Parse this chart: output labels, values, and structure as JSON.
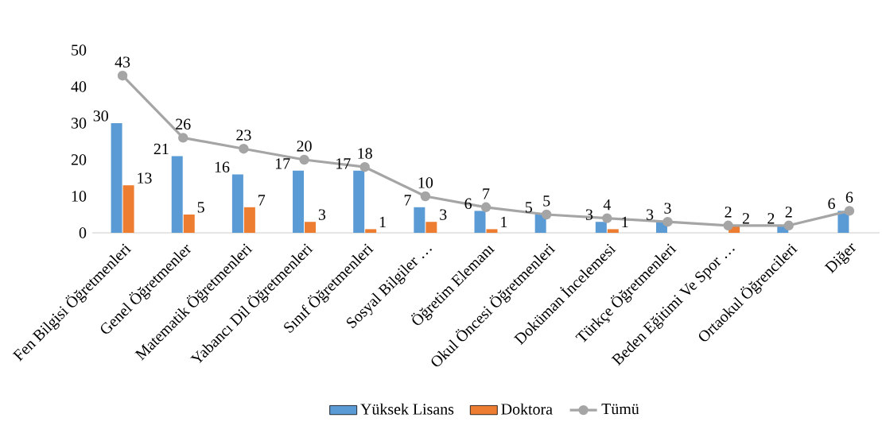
{
  "chart_data": {
    "type": "bar",
    "categories": [
      "Fen Bilgisi Öğretmenleri",
      "Genel Öğretmenler",
      "Matematik Öğretmenleri",
      "Yabancı Dil Öğretmenleri",
      "Sınıf Öğretmenleri",
      "Sosyal Bilgiler …",
      "Öğretim Elemanı",
      "Okul Öncesi Öğretmenleri",
      "Doküman İncelemesi",
      "Türkçe Öğretmenleri",
      "Beden Eğitimi Ve Spor …",
      "Ortaokul Öğrencileri",
      "Diğer"
    ],
    "series": [
      {
        "name": "Yüksek Lisans",
        "color": "#5b9bd5",
        "values": [
          30,
          21,
          16,
          17,
          17,
          7,
          6,
          5,
          3,
          3,
          null,
          2,
          6
        ]
      },
      {
        "name": "Doktora",
        "color": "#ed7d31",
        "values": [
          13,
          5,
          7,
          3,
          1,
          3,
          1,
          null,
          1,
          null,
          2,
          null,
          null
        ]
      },
      {
        "name": "Tümü",
        "type": "line",
        "color": "#a5a5a5",
        "marker": "circle",
        "values": [
          43,
          26,
          23,
          20,
          18,
          10,
          7,
          5,
          4,
          3,
          2,
          2,
          6
        ]
      }
    ],
    "ylim": [
      0,
      50
    ],
    "yticks": [
      0,
      10,
      20,
      30,
      40,
      50
    ],
    "data_labels": true,
    "grid": false,
    "legend": "bottom"
  }
}
